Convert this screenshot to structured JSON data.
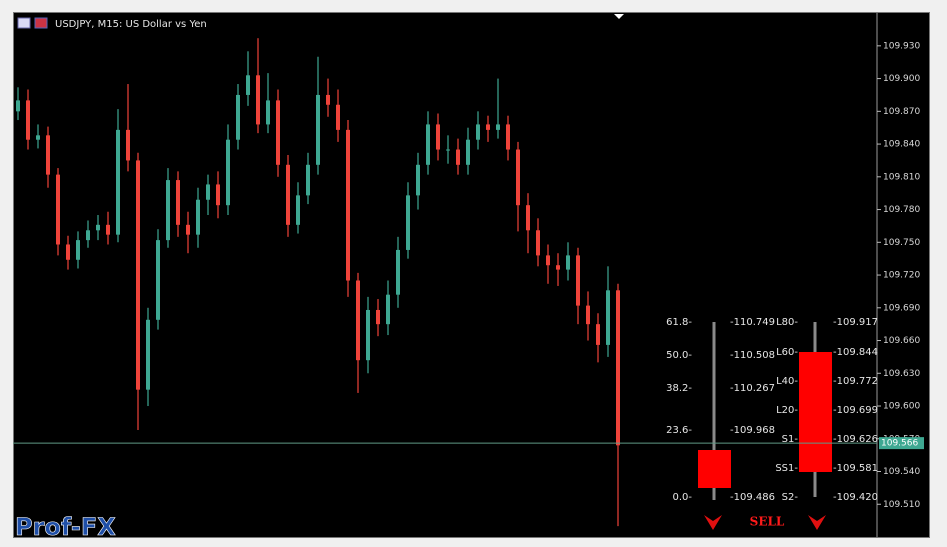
{
  "chart_data": {
    "type": "candlestick",
    "title": "USDJPY, M15:  US Dollar vs Yen",
    "up_color": "#3ea892",
    "down_color": "#f0433a",
    "open": [
      109.87,
      109.88,
      109.844,
      109.848,
      109.812,
      109.748,
      109.734,
      109.752,
      109.761,
      109.766,
      109.757,
      109.853,
      109.825,
      109.615,
      109.679,
      109.752,
      109.807,
      109.766,
      109.757,
      109.789,
      109.803,
      109.784,
      109.844,
      109.885,
      109.903,
      109.858,
      109.88,
      109.821,
      109.766,
      109.793,
      109.821,
      109.885,
      109.876,
      109.853,
      109.715,
      109.642,
      109.688,
      109.675,
      109.702,
      109.743,
      109.793,
      109.821,
      109.858,
      109.835,
      109.835,
      109.821,
      109.844,
      109.858,
      109.853,
      109.858,
      109.835,
      109.784,
      109.761,
      109.738,
      109.729,
      109.725,
      109.738,
      109.692,
      109.675,
      109.656,
      109.706
    ],
    "high": [
      109.892,
      109.89,
      109.858,
      109.856,
      109.818,
      109.756,
      109.76,
      109.77,
      109.775,
      109.778,
      109.872,
      109.895,
      109.832,
      109.69,
      109.762,
      109.818,
      109.815,
      109.778,
      109.8,
      109.812,
      109.815,
      109.858,
      109.895,
      109.925,
      109.937,
      109.905,
      109.89,
      109.83,
      109.805,
      109.832,
      109.92,
      109.9,
      109.89,
      109.862,
      109.722,
      109.7,
      109.698,
      109.715,
      109.755,
      109.805,
      109.832,
      109.87,
      109.868,
      109.848,
      109.845,
      109.855,
      109.87,
      109.866,
      109.9,
      109.866,
      109.842,
      109.795,
      109.772,
      109.748,
      109.74,
      109.75,
      109.745,
      109.705,
      109.685,
      109.728,
      109.712
    ],
    "low": [
      109.862,
      109.835,
      109.836,
      109.8,
      109.738,
      109.725,
      109.726,
      109.745,
      109.752,
      109.748,
      109.75,
      109.815,
      109.578,
      109.6,
      109.67,
      109.745,
      109.755,
      109.74,
      109.745,
      109.775,
      109.772,
      109.775,
      109.835,
      109.875,
      109.85,
      109.85,
      109.81,
      109.755,
      109.758,
      109.785,
      109.812,
      109.865,
      109.842,
      109.7,
      109.612,
      109.63,
      109.664,
      109.665,
      109.69,
      109.735,
      109.78,
      109.812,
      109.825,
      109.822,
      109.812,
      109.812,
      109.835,
      109.842,
      109.845,
      109.825,
      109.76,
      109.74,
      109.728,
      109.712,
      109.71,
      109.715,
      109.675,
      109.66,
      109.64,
      109.645,
      109.49
    ],
    "close": [
      109.88,
      109.844,
      109.848,
      109.812,
      109.748,
      109.734,
      109.752,
      109.761,
      109.766,
      109.757,
      109.853,
      109.825,
      109.615,
      109.679,
      109.752,
      109.807,
      109.766,
      109.757,
      109.789,
      109.803,
      109.784,
      109.844,
      109.885,
      109.903,
      109.858,
      109.88,
      109.821,
      109.766,
      109.793,
      109.821,
      109.885,
      109.876,
      109.853,
      109.715,
      109.642,
      109.688,
      109.675,
      109.702,
      109.743,
      109.793,
      109.821,
      109.858,
      109.835,
      109.835,
      109.821,
      109.844,
      109.858,
      109.853,
      109.858,
      109.835,
      109.784,
      109.761,
      109.738,
      109.729,
      109.725,
      109.738,
      109.692,
      109.675,
      109.656,
      109.706,
      109.564
    ],
    "current_price": 109.566,
    "ylim": [
      109.48,
      109.961
    ],
    "yticks": [
      {
        "value": 109.51,
        "label": "109.510"
      },
      {
        "value": 109.54,
        "label": "109.540"
      },
      {
        "value": 109.57,
        "label": "109.570"
      },
      {
        "value": 109.6,
        "label": "109.600"
      },
      {
        "value": 109.63,
        "label": "109.630"
      },
      {
        "value": 109.66,
        "label": "109.660"
      },
      {
        "value": 109.69,
        "label": "109.690"
      },
      {
        "value": 109.72,
        "label": "109.720"
      },
      {
        "value": 109.75,
        "label": "109.750"
      },
      {
        "value": 109.78,
        "label": "109.780"
      },
      {
        "value": 109.81,
        "label": "109.810"
      },
      {
        "value": 109.84,
        "label": "109.840"
      },
      {
        "value": 109.87,
        "label": "109.870"
      },
      {
        "value": 109.9,
        "label": "109.900"
      },
      {
        "value": 109.93,
        "label": "109.930"
      }
    ]
  },
  "indicator": {
    "fibonacci": [
      {
        "level": "61.8-",
        "price": "-110.749"
      },
      {
        "level": "50.0-",
        "price": "-110.508"
      },
      {
        "level": "38.2-",
        "price": "-110.267"
      },
      {
        "level": "23.6-",
        "price": "-109.968"
      },
      {
        "level": "0.0-",
        "price": "-109.486"
      }
    ],
    "pivots": [
      {
        "level": "L80-",
        "price": "-109.917"
      },
      {
        "level": "L60-",
        "price": "-109.844"
      },
      {
        "level": "L40-",
        "price": "-109.772"
      },
      {
        "level": "L20-",
        "price": "-109.699"
      },
      {
        "level": "S1-",
        "price": "-109.626"
      },
      {
        "level": "SS1-",
        "price": "-109.581"
      },
      {
        "level": "S2-",
        "price": "-109.420"
      }
    ],
    "signal": "SELL"
  },
  "watermark": "Prof-FX"
}
